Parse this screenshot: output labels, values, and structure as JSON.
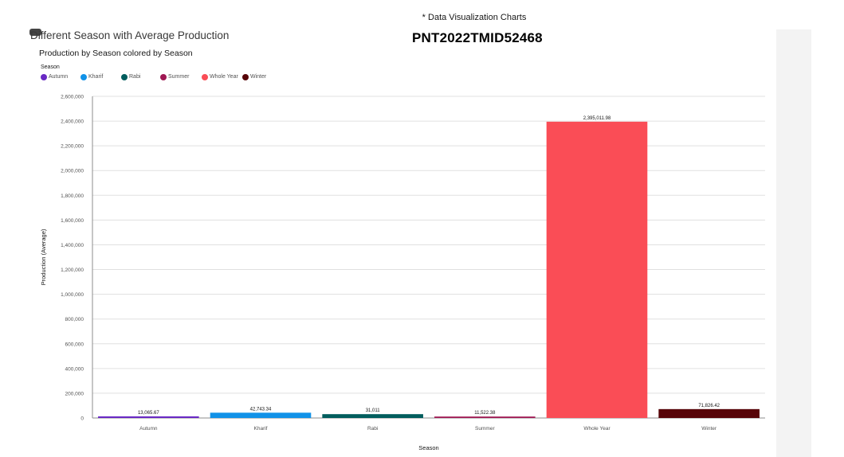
{
  "page": {
    "top_note": "* Data Visualization Charts",
    "project_id": "PNT2022TMID52468",
    "card_title": "Different Season with Average Production"
  },
  "legend": {
    "title": "Season",
    "items": [
      {
        "label": "Autumn",
        "color": "#6929c4"
      },
      {
        "label": "Kharif",
        "color": "#1192e8"
      },
      {
        "label": "Rabi",
        "color": "#005d5d"
      },
      {
        "label": "Summer",
        "color": "#9f1853"
      },
      {
        "label": "Whole Year",
        "color": "#fa4d56"
      },
      {
        "label": "Winter",
        "color": "#570408"
      }
    ]
  },
  "chart_data": {
    "type": "bar",
    "title": "Production by Season colored by Season",
    "xlabel": "Season",
    "ylabel": "Production (Average)",
    "ylim": [
      0,
      2600000
    ],
    "yticks": [
      0,
      200000,
      400000,
      600000,
      800000,
      1000000,
      1200000,
      1400000,
      1600000,
      1800000,
      2000000,
      2200000,
      2400000,
      2600000
    ],
    "ytick_labels": [
      "0",
      "200,000",
      "400,000",
      "600,000",
      "800,000",
      "1,000,000",
      "1,200,000",
      "1,400,000",
      "1,600,000",
      "1,800,000",
      "2,000,000",
      "2,200,000",
      "2,400,000",
      "2,600,000"
    ],
    "categories": [
      "Autumn",
      "Kharif",
      "Rabi",
      "Summer",
      "Whole Year",
      "Winter"
    ],
    "values": [
      13065.67,
      42743.34,
      31011,
      11522.38,
      2395011.98,
      71826.42
    ],
    "data_labels": [
      "13,065.67",
      "42,743.34",
      "31,011",
      "11,522.38",
      "2,395,011.98",
      "71,826.42"
    ],
    "colors": [
      "#6929c4",
      "#1192e8",
      "#005d5d",
      "#9f1853",
      "#fa4d56",
      "#570408"
    ],
    "grid": true,
    "legend_position": "top-left"
  }
}
